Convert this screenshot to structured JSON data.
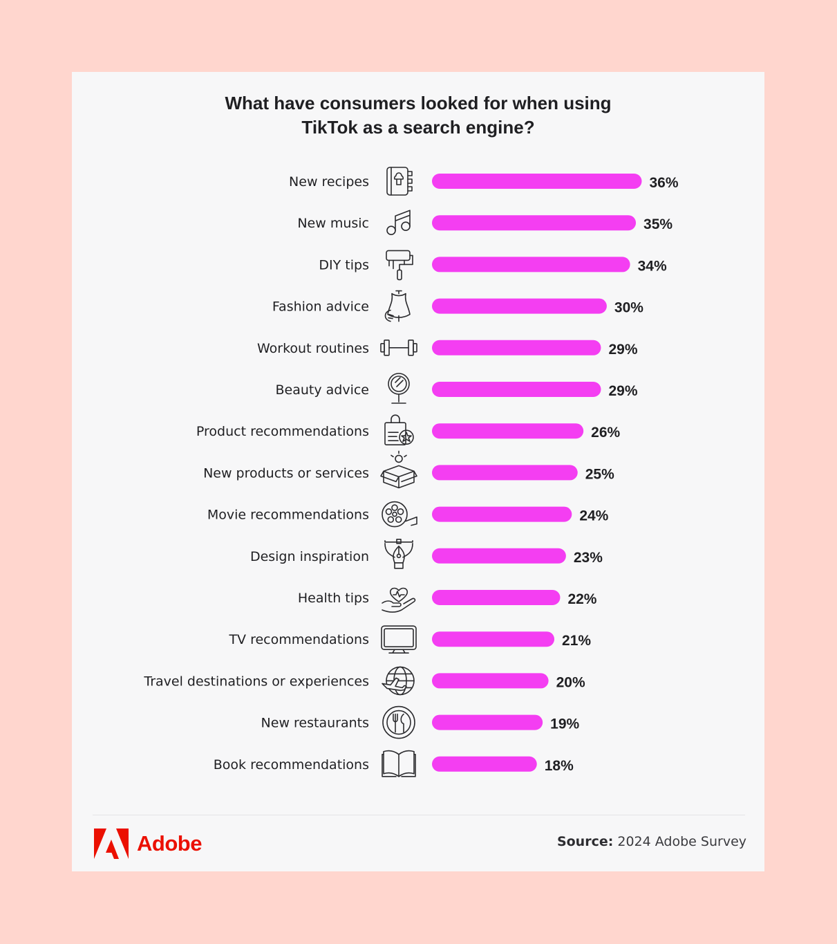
{
  "title_line1": "What have consumers looked for when using",
  "title_line2": "TikTok as a search engine?",
  "chart_data": {
    "type": "bar",
    "orientation": "horizontal",
    "title": "What have consumers looked for when using TikTok as a search engine?",
    "categories": [
      "New recipes",
      "New music",
      "DIY tips",
      "Fashion advice",
      "Workout routines",
      "Beauty advice",
      "Product recommendations",
      "New products or services",
      "Movie recommendations",
      "Design inspiration",
      "Health tips",
      "TV recommendations",
      "Travel destinations or experiences",
      "New restaurants",
      "Book recommendations"
    ],
    "values": [
      36,
      35,
      34,
      30,
      29,
      29,
      26,
      25,
      24,
      23,
      22,
      21,
      20,
      19,
      18
    ],
    "value_labels": [
      "36%",
      "35%",
      "34%",
      "30%",
      "29%",
      "29%",
      "26%",
      "25%",
      "24%",
      "23%",
      "22%",
      "21%",
      "20%",
      "19%",
      "18%"
    ],
    "icons": [
      "recipe-book-icon",
      "music-note-icon",
      "paint-roller-icon",
      "dress-form-icon",
      "dumbbell-icon",
      "mirror-icon",
      "shopping-bag-star-icon",
      "box-lightbulb-icon",
      "film-reel-icon",
      "pen-tool-icon",
      "hand-heart-icon",
      "tv-icon",
      "globe-plane-icon",
      "plate-cutlery-icon",
      "open-book-icon"
    ],
    "bar_color": "#f43ef2",
    "xlabel": "",
    "ylabel": "",
    "grid": false
  },
  "brand": {
    "name": "Adobe",
    "color": "#eb1000"
  },
  "source": {
    "label": "Source:",
    "text": "2024 Adobe Survey"
  }
}
